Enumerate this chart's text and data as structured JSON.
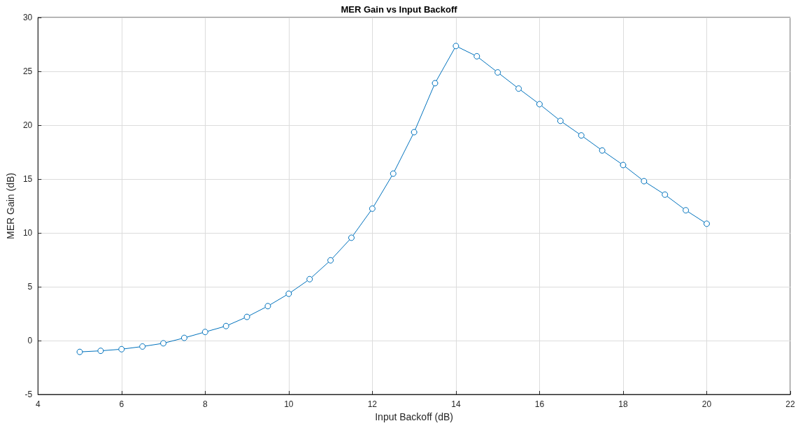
{
  "chart_data": {
    "type": "line",
    "title": "MER Gain vs Input Backoff",
    "xlabel": "Input Backoff (dB)",
    "ylabel": "MER Gain (dB)",
    "x": [
      5,
      5.5,
      6,
      6.5,
      7,
      7.5,
      8,
      8.5,
      9,
      9.5,
      10,
      10.5,
      11,
      11.5,
      12,
      12.5,
      13,
      13.5,
      14,
      14.5,
      15,
      15.5,
      16,
      16.5,
      17,
      17.5,
      18,
      18.5,
      19,
      19.5,
      20
    ],
    "series": [
      {
        "color": "#0072bd",
        "values": [
          -1.05,
          -0.95,
          -0.8,
          -0.55,
          -0.25,
          0.25,
          0.8,
          1.35,
          2.2,
          3.2,
          4.35,
          5.7,
          7.45,
          9.55,
          12.25,
          15.5,
          19.35,
          23.9,
          27.35,
          26.4,
          24.9,
          23.4,
          21.95,
          20.4,
          19.05,
          17.65,
          16.3,
          14.8,
          13.55,
          12.1,
          10.85
        ]
      }
    ],
    "xlim": [
      4,
      22
    ],
    "xticks": [
      4,
      6,
      8,
      10,
      12,
      14,
      16,
      18,
      20,
      22
    ],
    "ylim": [
      -5,
      30
    ],
    "yticks": [
      -5,
      0,
      5,
      10,
      15,
      20,
      25,
      30
    ],
    "grid": true,
    "marker": "circle",
    "line_style": "solid"
  }
}
